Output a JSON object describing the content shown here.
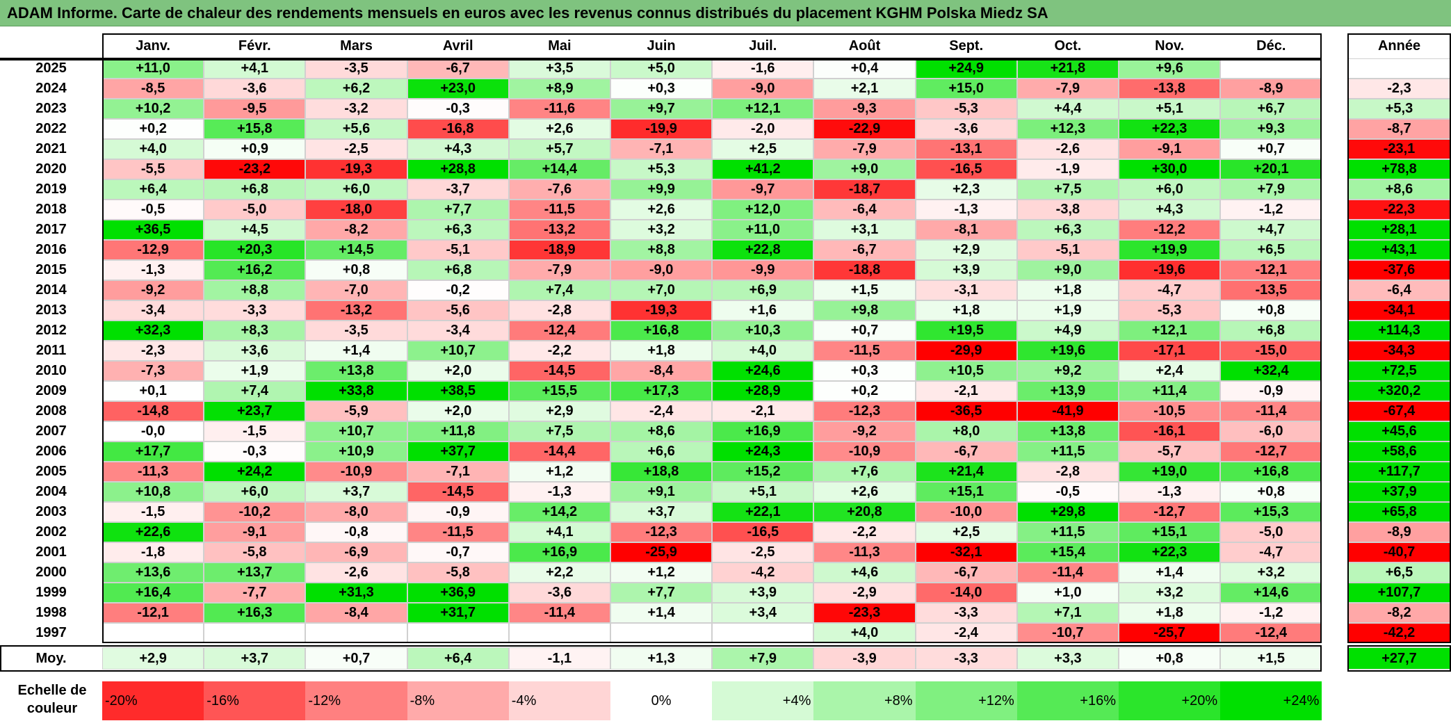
{
  "title": "ADAM Informe. Carte de chaleur des rendements mensuels en euros avec les revenus connus distribués du placement KGHM Polska Miedz SA",
  "chart_data": {
    "type": "heatmap",
    "title": "ADAM Informe. Carte de chaleur des rendements mensuels en euros avec les revenus connus distribués du placement KGHM Polska Miedz SA",
    "columns": [
      "Janv.",
      "Févr.",
      "Mars",
      "Avril",
      "Mai",
      "Juin",
      "Juil.",
      "Août",
      "Sept.",
      "Oct.",
      "Nov.",
      "Déc."
    ],
    "year_column_label": "Année",
    "average_row_label": "Moy.",
    "rows": [
      {
        "year": "2025",
        "values": [
          "+11,0",
          "+4,1",
          "-3,5",
          "-6,7",
          "+3,5",
          "+5,0",
          "-1,6",
          "+0,4",
          "+24,9",
          "+21,8",
          "+9,6",
          ""
        ],
        "annual": ""
      },
      {
        "year": "2024",
        "values": [
          "-8,5",
          "-3,6",
          "+6,2",
          "+23,0",
          "+8,9",
          "+0,3",
          "-9,0",
          "+2,1",
          "+15,0",
          "-7,9",
          "-13,8",
          "-8,9"
        ],
        "annual": "-2,3"
      },
      {
        "year": "2023",
        "values": [
          "+10,2",
          "-9,5",
          "-3,2",
          "-0,3",
          "-11,6",
          "+9,7",
          "+12,1",
          "-9,3",
          "-5,3",
          "+4,4",
          "+5,1",
          "+6,7"
        ],
        "annual": "+5,3"
      },
      {
        "year": "2022",
        "values": [
          "+0,2",
          "+15,8",
          "+5,6",
          "-16,8",
          "+2,6",
          "-19,9",
          "-2,0",
          "-22,9",
          "-3,6",
          "+12,3",
          "+22,3",
          "+9,3"
        ],
        "annual": "-8,7"
      },
      {
        "year": "2021",
        "values": [
          "+4,0",
          "+0,9",
          "-2,5",
          "+4,3",
          "+5,7",
          "-7,1",
          "+2,5",
          "-7,9",
          "-13,1",
          "-2,6",
          "-9,1",
          "+0,7"
        ],
        "annual": "-23,1"
      },
      {
        "year": "2020",
        "values": [
          "-5,5",
          "-23,2",
          "-19,3",
          "+28,8",
          "+14,4",
          "+5,3",
          "+41,2",
          "+9,0",
          "-16,5",
          "-1,9",
          "+30,0",
          "+20,1"
        ],
        "annual": "+78,8"
      },
      {
        "year": "2019",
        "values": [
          "+6,4",
          "+6,8",
          "+6,0",
          "-3,7",
          "-7,6",
          "+9,9",
          "-9,7",
          "-18,7",
          "+2,3",
          "+7,5",
          "+6,0",
          "+7,9"
        ],
        "annual": "+8,6"
      },
      {
        "year": "2018",
        "values": [
          "-0,5",
          "-5,0",
          "-18,0",
          "+7,7",
          "-11,5",
          "+2,6",
          "+12,0",
          "-6,4",
          "-1,3",
          "-3,8",
          "+4,3",
          "-1,2"
        ],
        "annual": "-22,3"
      },
      {
        "year": "2017",
        "values": [
          "+36,5",
          "+4,5",
          "-8,2",
          "+6,3",
          "-13,2",
          "+3,2",
          "+11,0",
          "+3,1",
          "-8,1",
          "+6,3",
          "-12,2",
          "+4,7"
        ],
        "annual": "+28,1"
      },
      {
        "year": "2016",
        "values": [
          "-12,9",
          "+20,3",
          "+14,5",
          "-5,1",
          "-18,9",
          "+8,8",
          "+22,8",
          "-6,7",
          "+2,9",
          "-5,1",
          "+19,9",
          "+6,5"
        ],
        "annual": "+43,1"
      },
      {
        "year": "2015",
        "values": [
          "-1,3",
          "+16,2",
          "+0,8",
          "+6,8",
          "-7,9",
          "-9,0",
          "-9,9",
          "-18,8",
          "+3,9",
          "+9,0",
          "-19,6",
          "-12,1"
        ],
        "annual": "-37,6"
      },
      {
        "year": "2014",
        "values": [
          "-9,2",
          "+8,8",
          "-7,0",
          "-0,2",
          "+7,4",
          "+7,0",
          "+6,9",
          "+1,5",
          "-3,1",
          "+1,8",
          "-4,7",
          "-13,5"
        ],
        "annual": "-6,4"
      },
      {
        "year": "2013",
        "values": [
          "-3,4",
          "-3,3",
          "-13,2",
          "-5,6",
          "-2,8",
          "-19,3",
          "+1,6",
          "+9,8",
          "+1,8",
          "+1,9",
          "-5,3",
          "+0,8"
        ],
        "annual": "-34,1"
      },
      {
        "year": "2012",
        "values": [
          "+32,3",
          "+8,3",
          "-3,5",
          "-3,4",
          "-12,4",
          "+16,8",
          "+10,3",
          "+0,7",
          "+19,5",
          "+4,9",
          "+12,1",
          "+6,8"
        ],
        "annual": "+114,3"
      },
      {
        "year": "2011",
        "values": [
          "-2,3",
          "+3,6",
          "+1,4",
          "+10,7",
          "-2,2",
          "+1,8",
          "+4,0",
          "-11,5",
          "-29,9",
          "+19,6",
          "-17,1",
          "-15,0"
        ],
        "annual": "-34,3"
      },
      {
        "year": "2010",
        "values": [
          "-7,3",
          "+1,9",
          "+13,8",
          "+2,0",
          "-14,5",
          "-8,4",
          "+24,6",
          "+0,3",
          "+10,5",
          "+9,2",
          "+2,4",
          "+32,4"
        ],
        "annual": "+72,5"
      },
      {
        "year": "2009",
        "values": [
          "+0,1",
          "+7,4",
          "+33,8",
          "+38,5",
          "+15,5",
          "+17,3",
          "+28,9",
          "+0,2",
          "-2,1",
          "+13,9",
          "+11,4",
          "-0,9"
        ],
        "annual": "+320,2"
      },
      {
        "year": "2008",
        "values": [
          "-14,8",
          "+23,7",
          "-5,9",
          "+2,0",
          "+2,9",
          "-2,4",
          "-2,1",
          "-12,3",
          "-36,5",
          "-41,9",
          "-10,5",
          "-11,4"
        ],
        "annual": "-67,4"
      },
      {
        "year": "2007",
        "values": [
          "-0,0",
          "-1,5",
          "+10,7",
          "+11,8",
          "+7,5",
          "+8,6",
          "+16,9",
          "-9,2",
          "+8,0",
          "+13,8",
          "-16,1",
          "-6,0"
        ],
        "annual": "+45,6"
      },
      {
        "year": "2006",
        "values": [
          "+17,7",
          "-0,3",
          "+10,9",
          "+37,7",
          "-14,4",
          "+6,6",
          "+24,3",
          "-10,9",
          "-6,7",
          "+11,5",
          "-5,7",
          "-12,7"
        ],
        "annual": "+58,6"
      },
      {
        "year": "2005",
        "values": [
          "-11,3",
          "+24,2",
          "-10,9",
          "-7,1",
          "+1,2",
          "+18,8",
          "+15,2",
          "+7,6",
          "+21,4",
          "-2,8",
          "+19,0",
          "+16,8"
        ],
        "annual": "+117,7"
      },
      {
        "year": "2004",
        "values": [
          "+10,8",
          "+6,0",
          "+3,7",
          "-14,5",
          "-1,3",
          "+9,1",
          "+5,1",
          "+2,6",
          "+15,1",
          "-0,5",
          "-1,3",
          "+0,8"
        ],
        "annual": "+37,9"
      },
      {
        "year": "2003",
        "values": [
          "-1,5",
          "-10,2",
          "-8,0",
          "-0,9",
          "+14,2",
          "+3,7",
          "+22,1",
          "+20,8",
          "-10,0",
          "+29,8",
          "-12,7",
          "+15,3"
        ],
        "annual": "+65,8"
      },
      {
        "year": "2002",
        "values": [
          "+22,6",
          "-9,1",
          "-0,8",
          "-11,5",
          "+4,1",
          "-12,3",
          "-16,5",
          "-2,2",
          "+2,5",
          "+11,5",
          "+15,1",
          "-5,0"
        ],
        "annual": "-8,9"
      },
      {
        "year": "2001",
        "values": [
          "-1,8",
          "-5,8",
          "-6,9",
          "-0,7",
          "+16,9",
          "-25,9",
          "-2,5",
          "-11,3",
          "-32,1",
          "+15,4",
          "+22,3",
          "-4,7"
        ],
        "annual": "-40,7"
      },
      {
        "year": "2000",
        "values": [
          "+13,6",
          "+13,7",
          "-2,6",
          "-5,8",
          "+2,2",
          "+1,2",
          "-4,2",
          "+4,6",
          "-6,7",
          "-11,4",
          "+1,4",
          "+3,2"
        ],
        "annual": "+6,5"
      },
      {
        "year": "1999",
        "values": [
          "+16,4",
          "-7,7",
          "+31,3",
          "+36,9",
          "-3,6",
          "+7,7",
          "+3,9",
          "-2,9",
          "-14,0",
          "+1,0",
          "+3,2",
          "+14,6"
        ],
        "annual": "+107,7"
      },
      {
        "year": "1998",
        "values": [
          "-12,1",
          "+16,3",
          "-8,4",
          "+31,7",
          "-11,4",
          "+1,4",
          "+3,4",
          "-23,3",
          "-3,3",
          "+7,1",
          "+1,8",
          "-1,2"
        ],
        "annual": "-8,2"
      },
      {
        "year": "1997",
        "values": [
          "",
          "",
          "",
          "",
          "",
          "",
          "",
          "+4,0",
          "-2,4",
          "-10,7",
          "-25,7",
          "-12,4"
        ],
        "annual": "-42,2"
      }
    ],
    "averages": [
      "+2,9",
      "+3,7",
      "+0,7",
      "+6,4",
      "-1,1",
      "+1,3",
      "+7,9",
      "-3,9",
      "-3,3",
      "+3,3",
      "+0,8",
      "+1,5"
    ],
    "average_annual": "+27,7",
    "scale_label": "Echelle de couleur",
    "scale": [
      {
        "label": "-20%",
        "value": -20
      },
      {
        "label": "-16%",
        "value": -16
      },
      {
        "label": "-12%",
        "value": -12
      },
      {
        "label": "-8%",
        "value": -8
      },
      {
        "label": "-4%",
        "value": -4
      },
      {
        "label": "0%",
        "value": 0
      },
      {
        "label": "+4%",
        "value": 4
      },
      {
        "label": "+8%",
        "value": 8
      },
      {
        "label": "+12%",
        "value": 12
      },
      {
        "label": "+16%",
        "value": 16
      },
      {
        "label": "+20%",
        "value": 20
      },
      {
        "label": "+24%",
        "value": 24
      }
    ],
    "colors": {
      "negative_max": "#ff0000",
      "neutral": "#ffffff",
      "positive_max": "#00e000",
      "title_bar": "#7fc37f"
    }
  }
}
